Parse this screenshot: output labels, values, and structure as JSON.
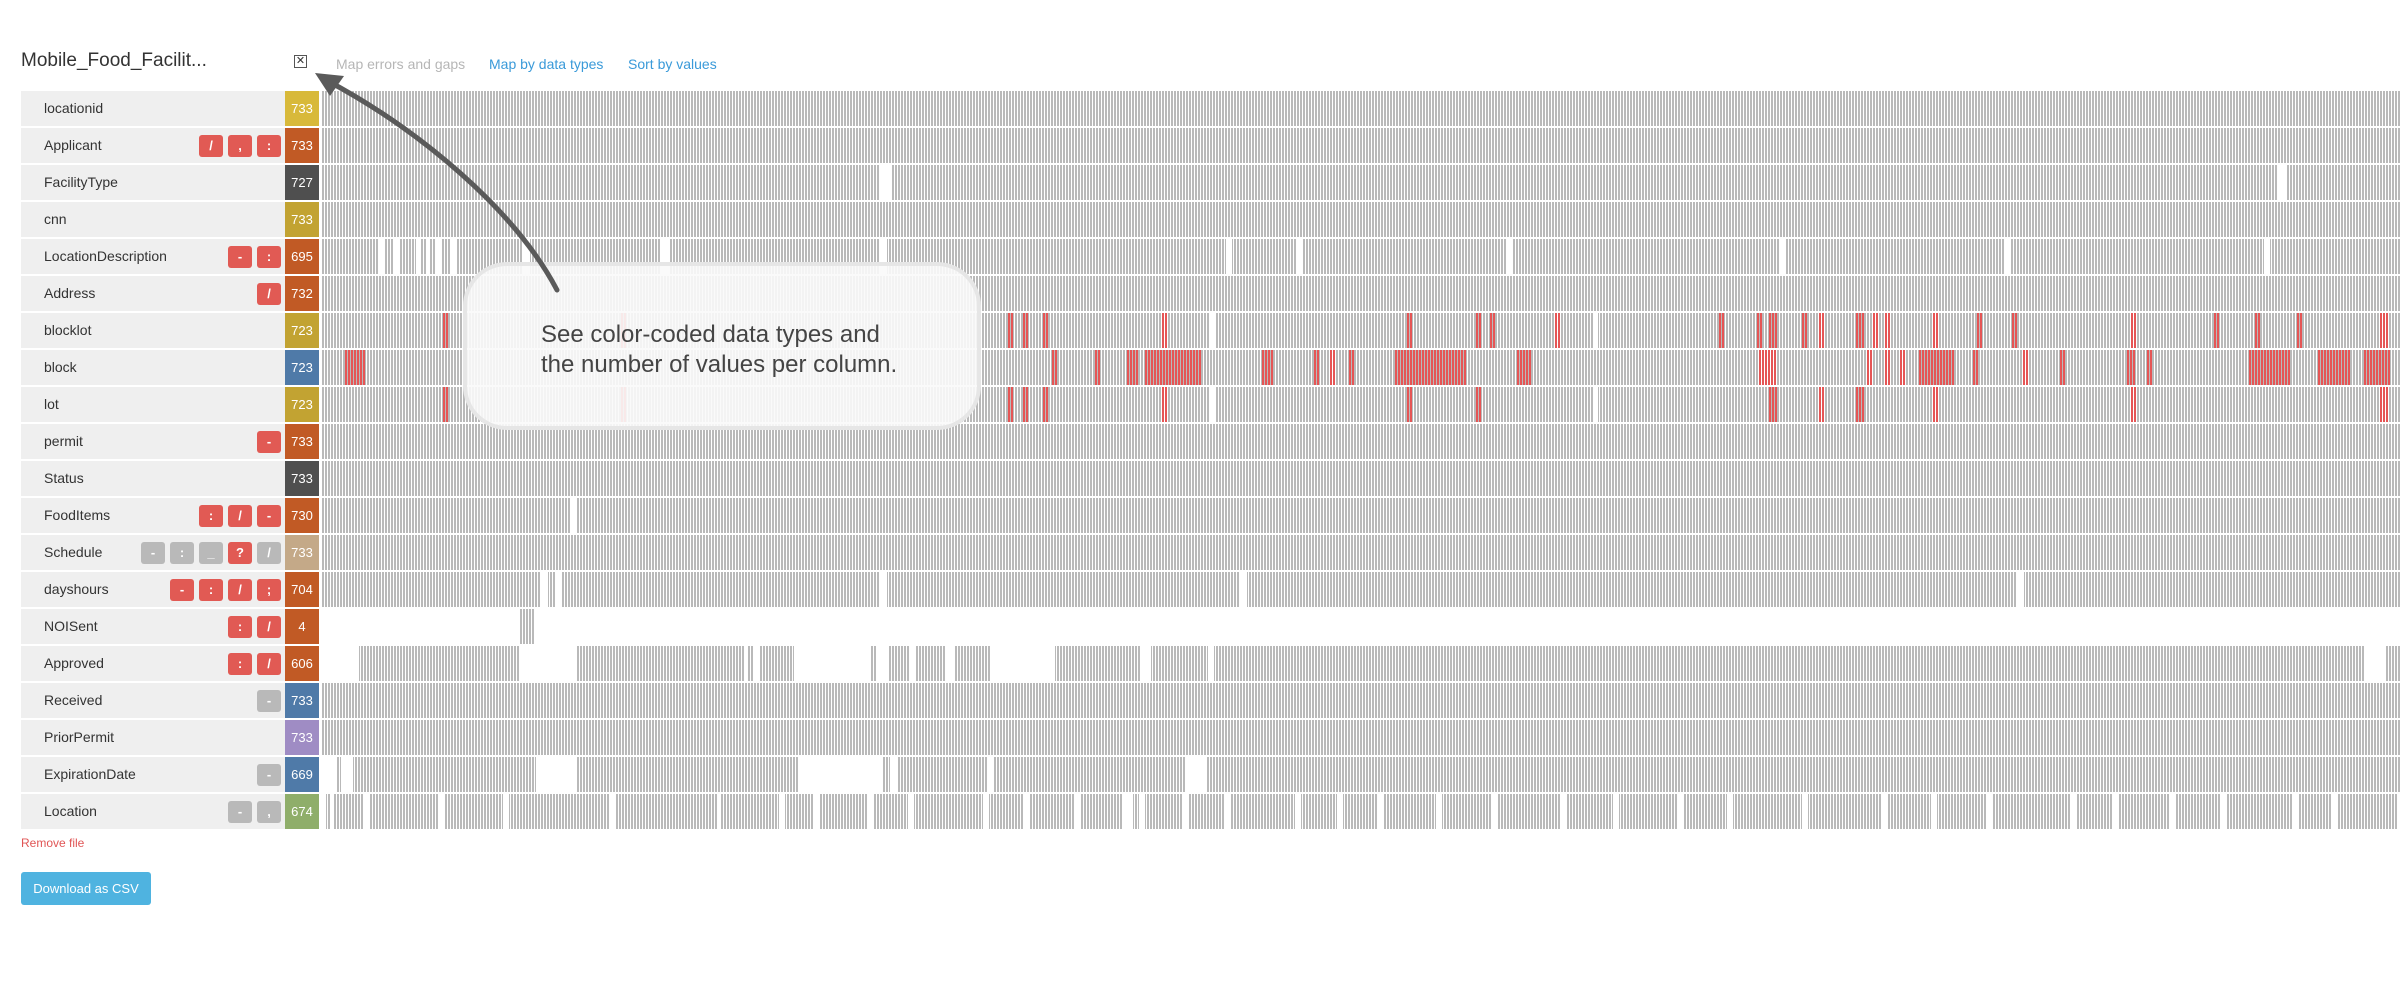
{
  "header": {
    "file_name": "Mobile_Food_Facilit...",
    "close_label": "✕",
    "tabs": [
      {
        "label": "Map errors and gaps",
        "active": true
      },
      {
        "label": "Map by data types",
        "active": false
      },
      {
        "label": "Sort by values",
        "active": false
      }
    ]
  },
  "colors": {
    "badge_red": "#e15a54",
    "badge_gray": "#b9b9b9",
    "bar_gray": "#b9b9b9",
    "error_red": "#e55555",
    "link_blue": "#3a9ad9"
  },
  "columns": [
    {
      "name": "locationid",
      "badges": [],
      "count": "733",
      "color": "#d8b93a"
    },
    {
      "name": "Applicant",
      "badges": [
        {
          "s": "/",
          "t": "red"
        },
        {
          "s": ",",
          "t": "red"
        },
        {
          "s": ":",
          "t": "red"
        }
      ],
      "count": "733",
      "color": "#c15a25"
    },
    {
      "name": "FacilityType",
      "badges": [],
      "count": "727",
      "color": "#4f4f4f"
    },
    {
      "name": "cnn",
      "badges": [],
      "count": "733",
      "color": "#c2a332"
    },
    {
      "name": "LocationDescription",
      "badges": [
        {
          "s": "-",
          "t": "red"
        },
        {
          "s": ":",
          "t": "red"
        }
      ],
      "count": "695",
      "color": "#c15a25"
    },
    {
      "name": "Address",
      "badges": [
        {
          "s": "/",
          "t": "red"
        }
      ],
      "count": "732",
      "color": "#c15a25"
    },
    {
      "name": "blocklot",
      "badges": [],
      "count": "723",
      "color": "#c2a332"
    },
    {
      "name": "block",
      "badges": [],
      "count": "723",
      "color": "#4f7aa8"
    },
    {
      "name": "lot",
      "badges": [],
      "count": "723",
      "color": "#c2a332"
    },
    {
      "name": "permit",
      "badges": [
        {
          "s": "-",
          "t": "red"
        }
      ],
      "count": "733",
      "color": "#c15a25"
    },
    {
      "name": "Status",
      "badges": [],
      "count": "733",
      "color": "#4f4f4f"
    },
    {
      "name": "FoodItems",
      "badges": [
        {
          "s": ":",
          "t": "red"
        },
        {
          "s": "/",
          "t": "red"
        },
        {
          "s": "-",
          "t": "red"
        }
      ],
      "count": "730",
      "color": "#c15a25"
    },
    {
      "name": "Schedule",
      "badges": [
        {
          "s": "-",
          "t": "gray"
        },
        {
          "s": ":",
          "t": "gray"
        },
        {
          "s": "_",
          "t": "gray"
        },
        {
          "s": "?",
          "t": "red"
        },
        {
          "s": "/",
          "t": "gray"
        }
      ],
      "count": "733",
      "color": "#c4a988"
    },
    {
      "name": "dayshours",
      "badges": [
        {
          "s": "-",
          "t": "red"
        },
        {
          "s": ":",
          "t": "red"
        },
        {
          "s": "/",
          "t": "red"
        },
        {
          "s": ";",
          "t": "red"
        }
      ],
      "count": "704",
      "color": "#c15a25"
    },
    {
      "name": "NOISent",
      "badges": [
        {
          "s": ":",
          "t": "red"
        },
        {
          "s": "/",
          "t": "red"
        }
      ],
      "count": "4",
      "color": "#c15a25"
    },
    {
      "name": "Approved",
      "badges": [
        {
          "s": ":",
          "t": "red"
        },
        {
          "s": "/",
          "t": "red"
        }
      ],
      "count": "606",
      "color": "#c15a25"
    },
    {
      "name": "Received",
      "badges": [
        {
          "s": "-",
          "t": "gray"
        }
      ],
      "count": "733",
      "color": "#4f7aa8"
    },
    {
      "name": "PriorPermit",
      "badges": [],
      "count": "733",
      "color": "#9f8cc4"
    },
    {
      "name": "ExpirationDate",
      "badges": [
        {
          "s": "-",
          "t": "gray"
        }
      ],
      "count": "669",
      "color": "#4f7aa8"
    },
    {
      "name": "Location",
      "badges": [
        {
          "s": "-",
          "t": "gray"
        },
        {
          "s": ",",
          "t": "gray"
        }
      ],
      "count": "674",
      "color": "#8fae6a"
    }
  ],
  "footer": {
    "remove_label": "Remove file",
    "download_label": "Download as CSV"
  },
  "callout": {
    "line1": "See color-coded data types and",
    "line2": "the number of values per column."
  }
}
